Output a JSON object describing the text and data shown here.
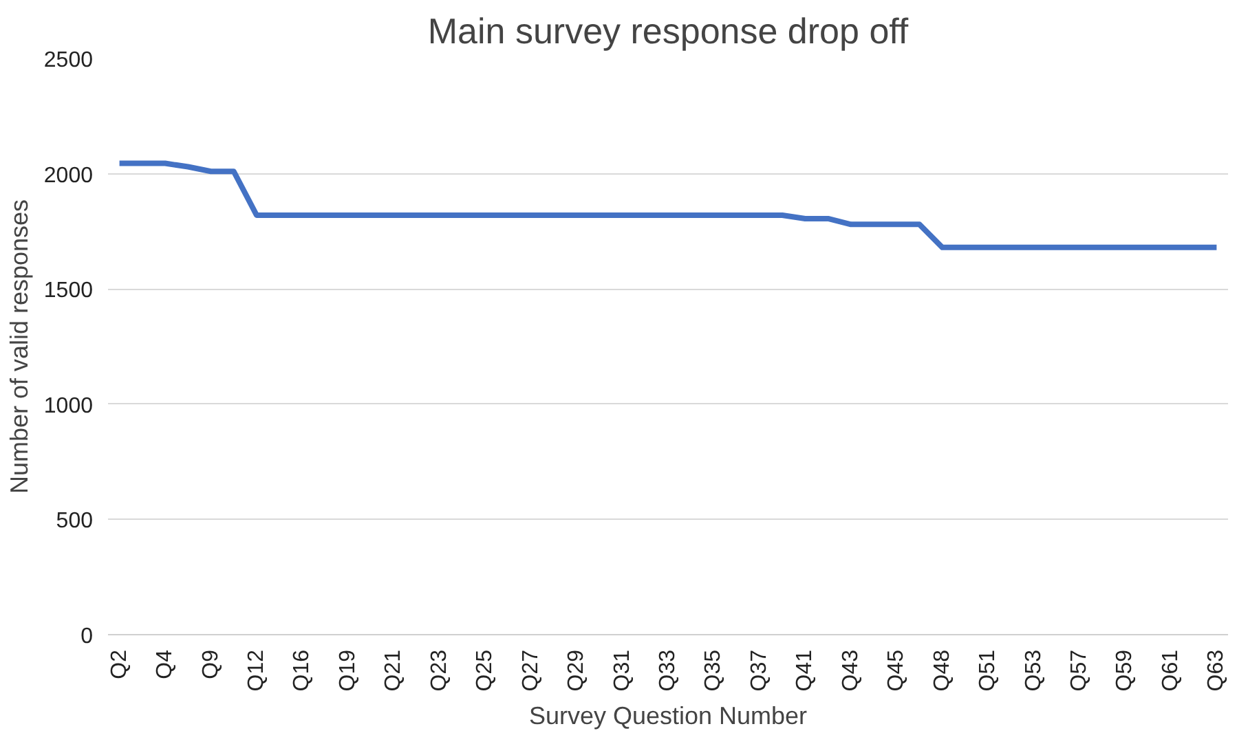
{
  "chart_data": {
    "type": "line",
    "title": "Main survey response drop off",
    "xlabel": "Survey Question Number",
    "ylabel": "Number of valid responses",
    "categories": [
      "Q2",
      null,
      "Q4",
      null,
      "Q9",
      null,
      "Q12",
      null,
      "Q16",
      null,
      "Q19",
      null,
      "Q21",
      null,
      "Q23",
      null,
      "Q25",
      null,
      "Q27",
      null,
      "Q29",
      null,
      "Q31",
      null,
      "Q33",
      null,
      "Q35",
      null,
      "Q37",
      null,
      "Q41",
      null,
      "Q43",
      null,
      "Q45",
      null,
      "Q48",
      null,
      "Q51",
      null,
      "Q53",
      null,
      "Q57",
      null,
      "Q59",
      null,
      "Q61",
      null,
      "Q63"
    ],
    "series": [
      {
        "color": "#4472c4",
        "values": [
          2045,
          2045,
          2045,
          2030,
          2010,
          2010,
          1820,
          1820,
          1820,
          1820,
          1820,
          1820,
          1820,
          1820,
          1820,
          1820,
          1820,
          1820,
          1820,
          1820,
          1820,
          1820,
          1820,
          1820,
          1820,
          1820,
          1820,
          1820,
          1820,
          1820,
          1805,
          1805,
          1780,
          1780,
          1780,
          1780,
          1680,
          1680,
          1680,
          1680,
          1680,
          1680,
          1680,
          1680,
          1680,
          1680,
          1680,
          1680,
          1680
        ]
      }
    ],
    "ylim": [
      0,
      2500
    ],
    "yticks": [
      0,
      500,
      1000,
      1500,
      2000,
      2500
    ],
    "grid": "y",
    "marker": "none",
    "line_style": "solid"
  }
}
